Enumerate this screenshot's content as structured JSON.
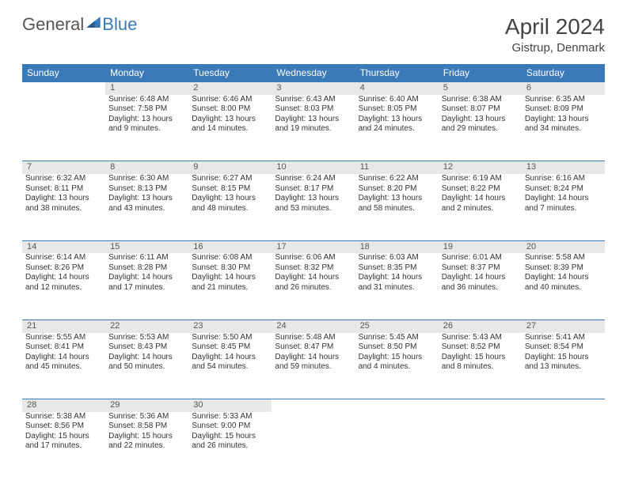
{
  "logo": {
    "text1": "General",
    "text2": "Blue",
    "color1": "#555555",
    "color2": "#3a7ab8"
  },
  "title": "April 2024",
  "location": "Gistrup, Denmark",
  "headers": [
    "Sunday",
    "Monday",
    "Tuesday",
    "Wednesday",
    "Thursday",
    "Friday",
    "Saturday"
  ],
  "header_bg": "#3a7ab8",
  "daynum_bg": "#e8e8e8",
  "border_color": "#3a7ab8",
  "month": {
    "start_weekday": 1,
    "num_days": 30
  },
  "days": {
    "1": {
      "sunrise": "6:48 AM",
      "sunset": "7:58 PM",
      "daylight": "13 hours and 9 minutes."
    },
    "2": {
      "sunrise": "6:46 AM",
      "sunset": "8:00 PM",
      "daylight": "13 hours and 14 minutes."
    },
    "3": {
      "sunrise": "6:43 AM",
      "sunset": "8:03 PM",
      "daylight": "13 hours and 19 minutes."
    },
    "4": {
      "sunrise": "6:40 AM",
      "sunset": "8:05 PM",
      "daylight": "13 hours and 24 minutes."
    },
    "5": {
      "sunrise": "6:38 AM",
      "sunset": "8:07 PM",
      "daylight": "13 hours and 29 minutes."
    },
    "6": {
      "sunrise": "6:35 AM",
      "sunset": "8:09 PM",
      "daylight": "13 hours and 34 minutes."
    },
    "7": {
      "sunrise": "6:32 AM",
      "sunset": "8:11 PM",
      "daylight": "13 hours and 38 minutes."
    },
    "8": {
      "sunrise": "6:30 AM",
      "sunset": "8:13 PM",
      "daylight": "13 hours and 43 minutes."
    },
    "9": {
      "sunrise": "6:27 AM",
      "sunset": "8:15 PM",
      "daylight": "13 hours and 48 minutes."
    },
    "10": {
      "sunrise": "6:24 AM",
      "sunset": "8:17 PM",
      "daylight": "13 hours and 53 minutes."
    },
    "11": {
      "sunrise": "6:22 AM",
      "sunset": "8:20 PM",
      "daylight": "13 hours and 58 minutes."
    },
    "12": {
      "sunrise": "6:19 AM",
      "sunset": "8:22 PM",
      "daylight": "14 hours and 2 minutes."
    },
    "13": {
      "sunrise": "6:16 AM",
      "sunset": "8:24 PM",
      "daylight": "14 hours and 7 minutes."
    },
    "14": {
      "sunrise": "6:14 AM",
      "sunset": "8:26 PM",
      "daylight": "14 hours and 12 minutes."
    },
    "15": {
      "sunrise": "6:11 AM",
      "sunset": "8:28 PM",
      "daylight": "14 hours and 17 minutes."
    },
    "16": {
      "sunrise": "6:08 AM",
      "sunset": "8:30 PM",
      "daylight": "14 hours and 21 minutes."
    },
    "17": {
      "sunrise": "6:06 AM",
      "sunset": "8:32 PM",
      "daylight": "14 hours and 26 minutes."
    },
    "18": {
      "sunrise": "6:03 AM",
      "sunset": "8:35 PM",
      "daylight": "14 hours and 31 minutes."
    },
    "19": {
      "sunrise": "6:01 AM",
      "sunset": "8:37 PM",
      "daylight": "14 hours and 36 minutes."
    },
    "20": {
      "sunrise": "5:58 AM",
      "sunset": "8:39 PM",
      "daylight": "14 hours and 40 minutes."
    },
    "21": {
      "sunrise": "5:55 AM",
      "sunset": "8:41 PM",
      "daylight": "14 hours and 45 minutes."
    },
    "22": {
      "sunrise": "5:53 AM",
      "sunset": "8:43 PM",
      "daylight": "14 hours and 50 minutes."
    },
    "23": {
      "sunrise": "5:50 AM",
      "sunset": "8:45 PM",
      "daylight": "14 hours and 54 minutes."
    },
    "24": {
      "sunrise": "5:48 AM",
      "sunset": "8:47 PM",
      "daylight": "14 hours and 59 minutes."
    },
    "25": {
      "sunrise": "5:45 AM",
      "sunset": "8:50 PM",
      "daylight": "15 hours and 4 minutes."
    },
    "26": {
      "sunrise": "5:43 AM",
      "sunset": "8:52 PM",
      "daylight": "15 hours and 8 minutes."
    },
    "27": {
      "sunrise": "5:41 AM",
      "sunset": "8:54 PM",
      "daylight": "15 hours and 13 minutes."
    },
    "28": {
      "sunrise": "5:38 AM",
      "sunset": "8:56 PM",
      "daylight": "15 hours and 17 minutes."
    },
    "29": {
      "sunrise": "5:36 AM",
      "sunset": "8:58 PM",
      "daylight": "15 hours and 22 minutes."
    },
    "30": {
      "sunrise": "5:33 AM",
      "sunset": "9:00 PM",
      "daylight": "15 hours and 26 minutes."
    }
  },
  "labels": {
    "sunrise_prefix": "Sunrise: ",
    "sunset_prefix": "Sunset: ",
    "daylight_prefix": "Daylight: "
  }
}
